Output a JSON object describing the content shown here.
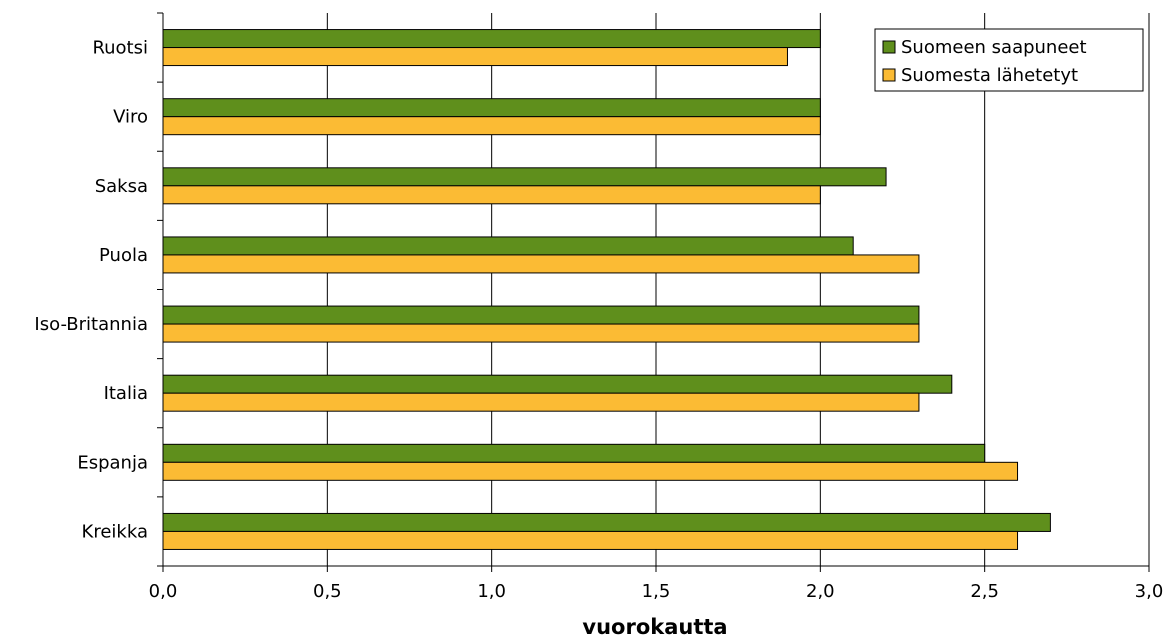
{
  "chart_data": {
    "type": "bar",
    "orientation": "horizontal",
    "categories": [
      "Ruotsi",
      "Viro",
      "Saksa",
      "Puola",
      "Iso-Britannia",
      "Italia",
      "Espanja",
      "Kreikka"
    ],
    "series": [
      {
        "name": "Suomeen saapuneet",
        "color": "#5f8f1c",
        "values": [
          2.0,
          2.0,
          2.2,
          2.1,
          2.3,
          2.4,
          2.5,
          2.7
        ]
      },
      {
        "name": "Suomesta lähetetyt",
        "color": "#fbbb34",
        "values": [
          1.9,
          2.0,
          2.0,
          2.3,
          2.3,
          2.3,
          2.6,
          2.6
        ]
      }
    ],
    "xlabel": "vuorokautta",
    "ylabel": "",
    "xlim": [
      0,
      3.0
    ],
    "xticks": [
      "0,0",
      "0,5",
      "1,0",
      "1,5",
      "2,0",
      "2,5",
      "3,0"
    ],
    "xtick_values": [
      0,
      0.5,
      1.0,
      1.5,
      2.0,
      2.5,
      3.0
    ],
    "grid": "vertical",
    "legend_position": "top-right"
  }
}
